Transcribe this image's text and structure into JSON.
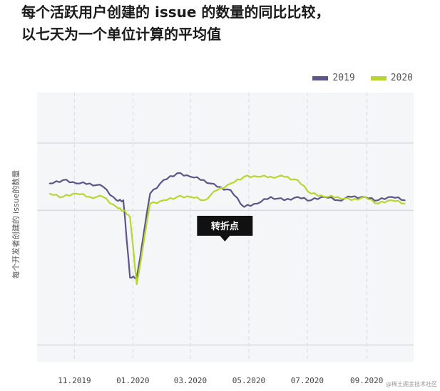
{
  "title": {
    "line1": "每个活跃用户创建的 issue 的数量的同比比较，",
    "line2": "以七天为一个单位计算的平均值"
  },
  "colors": {
    "series_2019": "#5e5489",
    "series_2020": "#b7d630",
    "plot_bg": "#f4f6f8",
    "grid": "#d8dce2"
  },
  "annotation": {
    "label": "转折点",
    "date": "2020-04-06"
  },
  "watermark": "@稀土掘金技术社区",
  "chart_data": {
    "type": "line",
    "title": "每个活跃用户创建的 issue 的数量的同比比较，以七天为一个单位计算的平均值",
    "xlabel": "",
    "ylabel": "每个开发者创建的 issue的数量",
    "x_ticks": [
      "11.2019",
      "01.2020",
      "03.2020",
      "05.2020",
      "07.2020",
      "09.2020"
    ],
    "x": [
      "2019-10-06",
      "2019-10-20",
      "2019-11-03",
      "2019-11-17",
      "2019-12-01",
      "2019-12-15",
      "2019-12-22",
      "2019-12-29",
      "2020-01-05",
      "2020-01-19",
      "2020-02-02",
      "2020-02-16",
      "2020-03-01",
      "2020-03-15",
      "2020-03-29",
      "2020-04-12",
      "2020-04-26",
      "2020-05-10",
      "2020-05-24",
      "2020-06-07",
      "2020-06-21",
      "2020-07-05",
      "2020-07-19",
      "2020-08-02",
      "2020-08-16",
      "2020-08-30",
      "2020-09-13",
      "2020-09-27",
      "2020-10-11"
    ],
    "series": [
      {
        "name": "2019",
        "values": [
          1.08,
          1.09,
          1.08,
          1.08,
          1.07,
          1.03,
          1.03,
          0.8,
          0.8,
          1.05,
          1.09,
          1.11,
          1.1,
          1.09,
          1.07,
          1.06,
          1.01,
          1.02,
          1.04,
          1.03,
          1.04,
          1.03,
          1.04,
          1.03,
          1.04,
          1.04,
          1.03,
          1.04,
          1.03
        ]
      },
      {
        "name": "2020",
        "values": [
          1.05,
          1.04,
          1.05,
          1.04,
          1.04,
          1.01,
          1.0,
          0.98,
          0.78,
          1.02,
          1.03,
          1.04,
          1.04,
          1.03,
          1.06,
          1.08,
          1.1,
          1.1,
          1.1,
          1.1,
          1.09,
          1.05,
          1.04,
          1.04,
          1.03,
          1.04,
          1.02,
          1.03,
          1.02
        ]
      }
    ],
    "ylim": [
      0.55,
      1.35
    ],
    "y_gridlines": [
      0.6,
      1.0,
      1.2
    ],
    "grid": true,
    "legend_position": "top-right"
  }
}
